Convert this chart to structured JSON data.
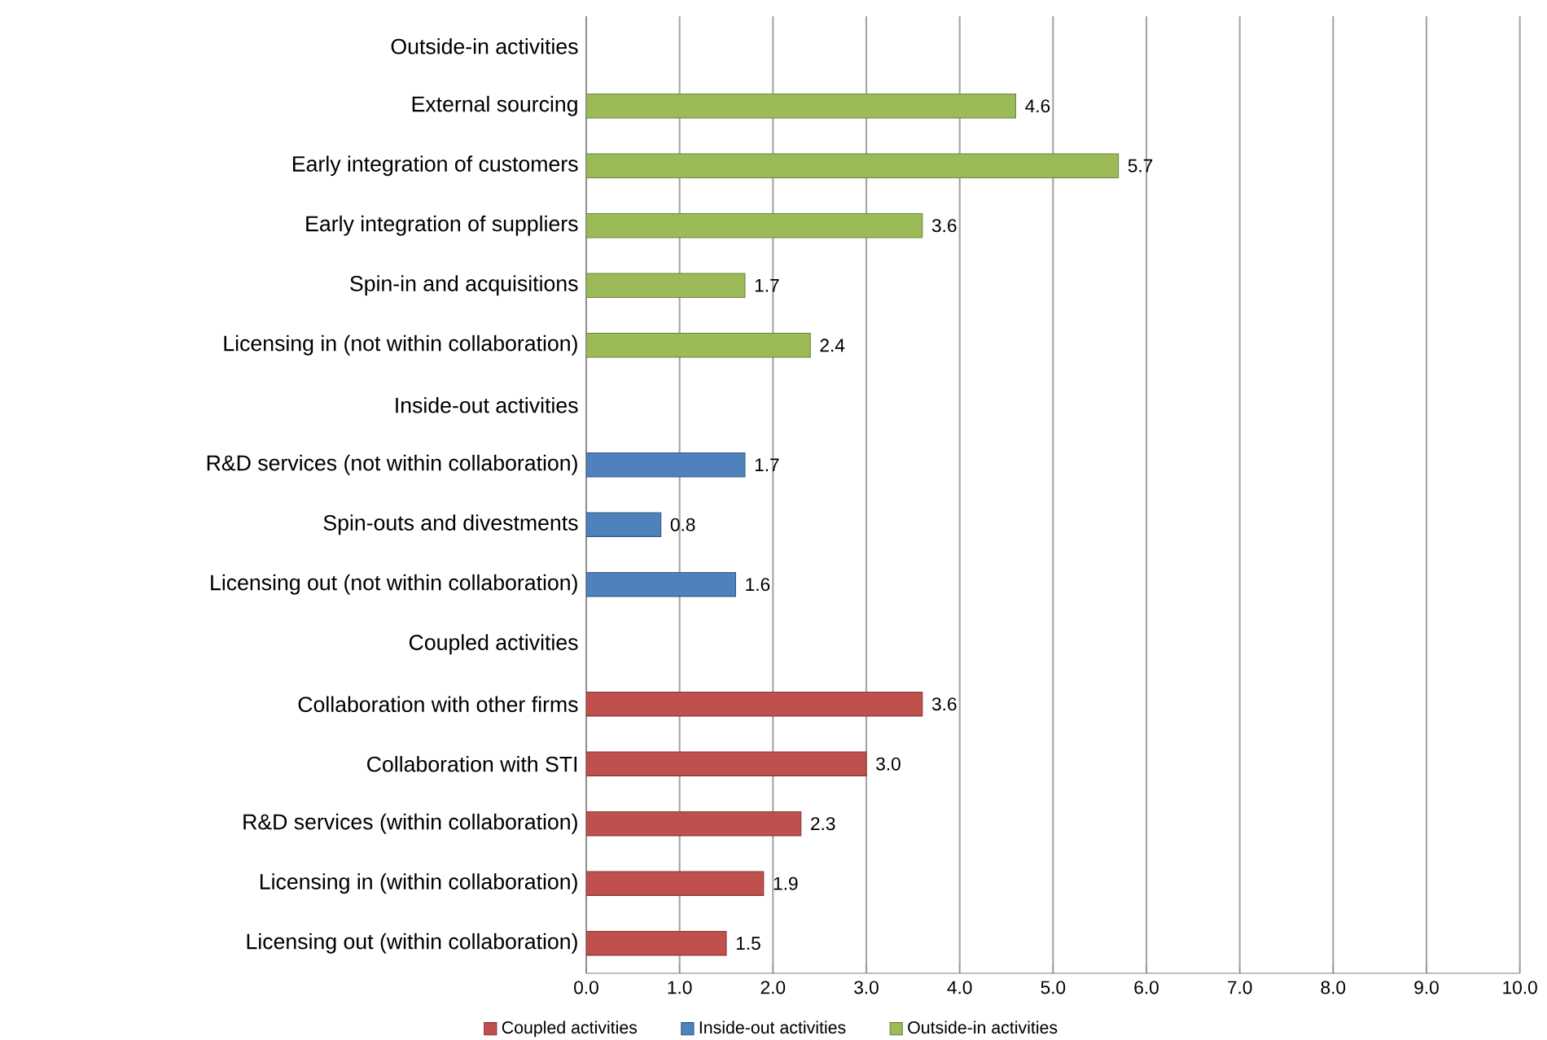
{
  "chart_data": {
    "type": "bar",
    "orientation": "horizontal",
    "categories": [
      "Outside-in activities",
      "External sourcing",
      "Early integration of customers",
      "Early integration of suppliers",
      "Spin-in and acquisitions",
      "Licensing in (not within collaboration)",
      "Inside-out activities",
      "R&D services (not within collaboration)",
      "Spin-outs and divestments",
      "Licensing out (not within collaboration)",
      "Coupled activities",
      "Collaboration with other firms",
      "Collaboration with STI",
      "R&D services (within collaboration)",
      "Licensing in (within collaboration)",
      "Licensing out (within collaboration)"
    ],
    "series": [
      {
        "name": "Coupled activities",
        "color": "#c0504d",
        "values": [
          null,
          null,
          null,
          null,
          null,
          null,
          null,
          null,
          null,
          null,
          null,
          3.6,
          3.0,
          2.3,
          1.9,
          1.5
        ],
        "value_labels": [
          null,
          null,
          null,
          null,
          null,
          null,
          null,
          null,
          null,
          null,
          null,
          "3.6",
          "3.0",
          "2.3",
          "1.9",
          "1.5"
        ]
      },
      {
        "name": "Inside-out activities",
        "color": "#4f81bd",
        "values": [
          null,
          null,
          null,
          null,
          null,
          null,
          null,
          1.7,
          0.8,
          1.6,
          null,
          null,
          null,
          null,
          null,
          null
        ],
        "value_labels": [
          null,
          null,
          null,
          null,
          null,
          null,
          null,
          "1.7",
          "0.8",
          "1.6",
          null,
          null,
          null,
          null,
          null,
          null
        ]
      },
      {
        "name": "Outside-in activities",
        "color": "#9bbb59",
        "values": [
          null,
          4.6,
          5.7,
          3.6,
          1.7,
          2.4,
          null,
          null,
          null,
          null,
          null,
          null,
          null,
          null,
          null,
          null
        ],
        "value_labels": [
          null,
          "4.6",
          "5.7",
          "3.6",
          "1.7",
          "2.4",
          null,
          null,
          null,
          null,
          null,
          null,
          null,
          null,
          null,
          null
        ]
      }
    ],
    "xlim": [
      0,
      10
    ],
    "xticks": [
      {
        "value": 0,
        "label": "0.0"
      },
      {
        "value": 1,
        "label": "1.0"
      },
      {
        "value": 2,
        "label": "2.0"
      },
      {
        "value": 3,
        "label": "3.0"
      },
      {
        "value": 4,
        "label": "4.0"
      },
      {
        "value": 5,
        "label": "5.0"
      },
      {
        "value": 6,
        "label": "6.0"
      },
      {
        "value": 7,
        "label": "7.0"
      },
      {
        "value": 8,
        "label": "8.0"
      },
      {
        "value": 9,
        "label": "9.0"
      },
      {
        "value": 10,
        "label": "10.0"
      }
    ],
    "grid": "x",
    "legend": "bottom"
  }
}
